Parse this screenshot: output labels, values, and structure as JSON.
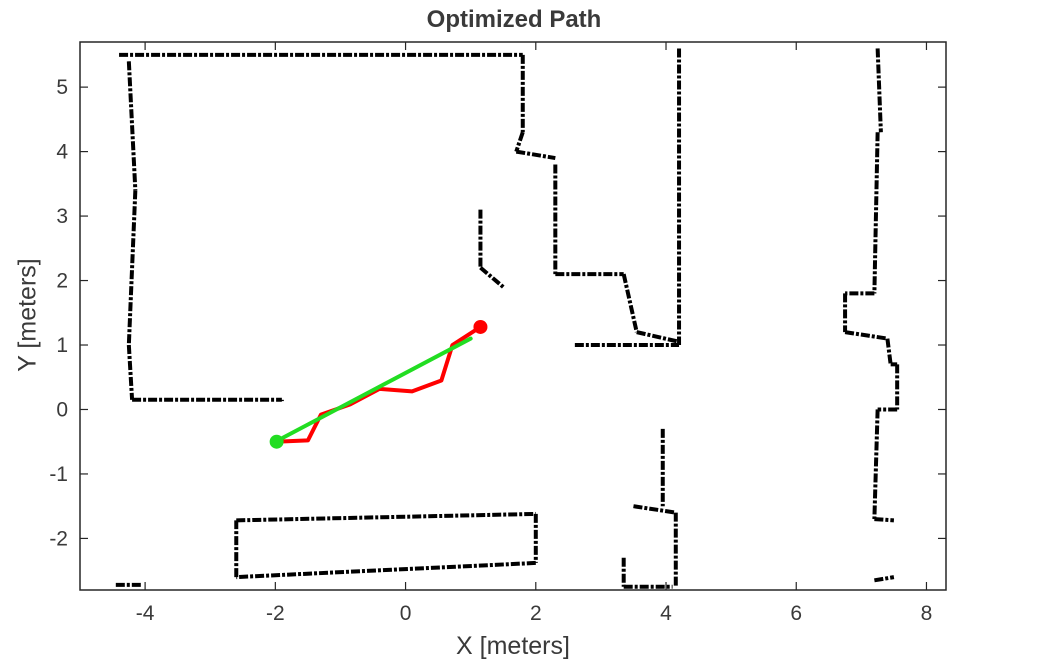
{
  "chart_data": {
    "type": "line",
    "title": "Optimized Path",
    "xlabel": "X [meters]",
    "ylabel": "Y [meters]",
    "xlim": [
      -5.0,
      8.3
    ],
    "ylim": [
      -2.8,
      5.7
    ],
    "xticks": [
      -4,
      -2,
      0,
      2,
      4,
      6,
      8
    ],
    "yticks": [
      -2,
      -1,
      0,
      1,
      2,
      3,
      4,
      5
    ],
    "grid": false,
    "legend": "none",
    "background": "occupancy-grid-map",
    "series": [
      {
        "color": "#ff0000",
        "points": [
          [
            -2.0,
            -0.5
          ],
          [
            -1.5,
            -0.48
          ],
          [
            -1.3,
            -0.08
          ],
          [
            -0.85,
            0.08
          ],
          [
            -0.4,
            0.32
          ],
          [
            0.1,
            0.28
          ],
          [
            0.55,
            0.45
          ],
          [
            0.72,
            1.0
          ],
          [
            1.15,
            1.28
          ]
        ]
      },
      {
        "color": "#22dd22",
        "points": [
          [
            -2.0,
            -0.5
          ],
          [
            1.0,
            1.1
          ]
        ]
      }
    ],
    "markers": [
      {
        "x": -1.98,
        "y": -0.5,
        "color": "#22dd22"
      },
      {
        "x": 1.15,
        "y": 1.28,
        "color": "#ff0000"
      }
    ],
    "map_walls": [
      [
        [
          -4.4,
          5.5
        ],
        [
          1.8,
          5.5
        ]
      ],
      [
        [
          -4.25,
          5.4
        ],
        [
          -4.15,
          3.4
        ]
      ],
      [
        [
          -4.15,
          3.4
        ],
        [
          -4.25,
          1.0
        ]
      ],
      [
        [
          -4.25,
          1.0
        ],
        [
          -4.2,
          0.15
        ]
      ],
      [
        [
          -4.2,
          0.15
        ],
        [
          -1.9,
          0.15
        ]
      ],
      [
        [
          -1.9,
          0.15
        ],
        [
          -1.9,
          0.13
        ]
      ],
      [
        [
          1.8,
          5.5
        ],
        [
          1.8,
          4.3
        ]
      ],
      [
        [
          1.8,
          4.3
        ],
        [
          1.7,
          4.0
        ]
      ],
      [
        [
          1.7,
          4.0
        ],
        [
          2.3,
          3.9
        ]
      ],
      [
        [
          1.15,
          3.1
        ],
        [
          1.15,
          2.2
        ]
      ],
      [
        [
          1.15,
          2.2
        ],
        [
          1.5,
          1.9
        ]
      ],
      [
        [
          2.3,
          3.8
        ],
        [
          2.3,
          2.1
        ]
      ],
      [
        [
          2.3,
          2.1
        ],
        [
          3.35,
          2.1
        ]
      ],
      [
        [
          3.35,
          2.1
        ],
        [
          3.55,
          1.2
        ]
      ],
      [
        [
          3.55,
          1.2
        ],
        [
          4.2,
          1.05
        ]
      ],
      [
        [
          2.6,
          1.0
        ],
        [
          4.2,
          1.0
        ]
      ],
      [
        [
          4.2,
          5.6
        ],
        [
          4.2,
          1.0
        ]
      ],
      [
        [
          -2.6,
          -1.72
        ],
        [
          2.0,
          -1.62
        ]
      ],
      [
        [
          2.0,
          -1.62
        ],
        [
          2.0,
          -2.38
        ]
      ],
      [
        [
          2.0,
          -2.38
        ],
        [
          -2.6,
          -2.6
        ]
      ],
      [
        [
          -2.6,
          -2.6
        ],
        [
          -2.6,
          -1.72
        ]
      ],
      [
        [
          3.95,
          -0.3
        ],
        [
          3.95,
          -1.5
        ]
      ],
      [
        [
          3.5,
          -1.5
        ],
        [
          4.15,
          -1.6
        ]
      ],
      [
        [
          4.15,
          -1.6
        ],
        [
          4.15,
          -2.75
        ]
      ],
      [
        [
          3.35,
          -2.3
        ],
        [
          3.35,
          -2.75
        ]
      ],
      [
        [
          3.35,
          -2.75
        ],
        [
          4.1,
          -2.75
        ]
      ],
      [
        [
          7.25,
          5.6
        ],
        [
          7.3,
          4.3
        ]
      ],
      [
        [
          7.25,
          4.3
        ],
        [
          7.2,
          1.8
        ]
      ],
      [
        [
          7.2,
          1.8
        ],
        [
          6.75,
          1.8
        ]
      ],
      [
        [
          6.75,
          1.8
        ],
        [
          6.75,
          1.2
        ]
      ],
      [
        [
          6.75,
          1.2
        ],
        [
          7.4,
          1.1
        ]
      ],
      [
        [
          7.4,
          1.1
        ],
        [
          7.45,
          0.7
        ]
      ],
      [
        [
          7.45,
          0.7
        ],
        [
          7.55,
          0.7
        ]
      ],
      [
        [
          7.55,
          0.7
        ],
        [
          7.55,
          0.0
        ]
      ],
      [
        [
          7.55,
          0.0
        ],
        [
          7.25,
          0.0
        ]
      ],
      [
        [
          7.25,
          0.0
        ],
        [
          7.2,
          -1.7
        ]
      ],
      [
        [
          7.2,
          -1.7
        ],
        [
          7.5,
          -1.72
        ]
      ],
      [
        [
          7.2,
          -2.65
        ],
        [
          7.5,
          -2.6
        ]
      ],
      [
        [
          -4.45,
          -2.72
        ],
        [
          -4.05,
          -2.72
        ]
      ]
    ]
  }
}
